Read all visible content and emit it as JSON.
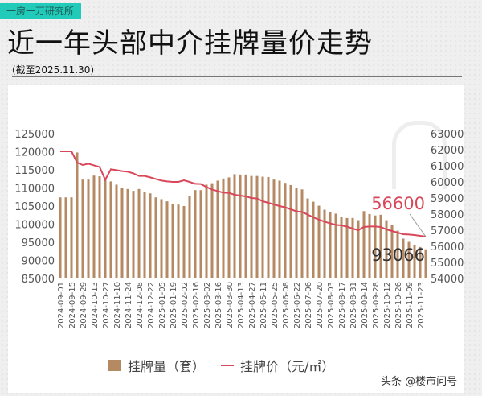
{
  "header": {
    "tag": "一房一万研究所",
    "title": "近一年头部中介挂牌量价走势",
    "subtitle": "(截至2025.11.30)"
  },
  "credit": "头条 @楼市问号",
  "colors": {
    "bars": "#b58a63",
    "line": "#d9475a",
    "tag": "#22cbb9"
  },
  "chart_data": {
    "type": "bar+line",
    "title": "近一年头部中介挂牌量价走势",
    "x_tick_labels": [
      "2024-09-01",
      "2024-09-15",
      "2024-09-29",
      "2024-10-13",
      "2024-10-27",
      "2024-11-10",
      "2024-11-24",
      "2024-12-08",
      "2024-12-22",
      "2025-01-05",
      "2025-01-19",
      "2025-02-02",
      "2025-02-16",
      "2025-03-02",
      "2025-03-16",
      "2025-03-30",
      "2025-04-13",
      "2025-04-27",
      "2025-05-11",
      "2025-05-25",
      "2025-06-08",
      "2025-06-22",
      "2025-07-06",
      "2025-07-20",
      "2025-08-03",
      "2025-08-17",
      "2025-08-31",
      "2025-09-14",
      "2025-09-28",
      "2025-10-12",
      "2025-10-26",
      "2025-11-09",
      "2025-11-23"
    ],
    "x_start": "2024-09-01",
    "x_interval": "weekly",
    "y_left": {
      "ylim": [
        85000,
        125000
      ],
      "ticks": [
        85000,
        90000,
        95000,
        100000,
        105000,
        110000,
        115000,
        120000,
        125000
      ]
    },
    "y_right": {
      "ylim": [
        54000,
        63000
      ],
      "ticks": [
        54000,
        55000,
        56000,
        57000,
        58000,
        59000,
        60000,
        61000,
        62000,
        63000
      ]
    },
    "series": [
      {
        "name": "挂牌量（套）",
        "type": "bar",
        "axis": "left",
        "values": [
          107400,
          107400,
          107400,
          119800,
          112300,
          112300,
          113400,
          113200,
          112400,
          111800,
          110900,
          110000,
          109700,
          109200,
          109700,
          109000,
          108500,
          107400,
          106900,
          106300,
          105600,
          105400,
          105000,
          107800,
          109400,
          109400,
          110900,
          111300,
          112000,
          112600,
          112900,
          113800,
          113700,
          113700,
          113300,
          113300,
          113100,
          113000,
          112300,
          112000,
          111400,
          110800,
          110000,
          109600,
          107100,
          106200,
          105100,
          104000,
          103300,
          102900,
          102000,
          101700,
          101700,
          101100,
          103600,
          102800,
          102400,
          102600,
          101100,
          99900,
          98200,
          96000,
          95100,
          94300,
          93700,
          93066
        ]
      },
      {
        "name": "挂牌价（元/㎡）",
        "type": "line",
        "axis": "right",
        "values": [
          61900,
          61900,
          61900,
          61200,
          61050,
          61130,
          61030,
          60930,
          60130,
          60780,
          60730,
          60670,
          60630,
          60530,
          60370,
          60370,
          60280,
          60180,
          60080,
          60030,
          60000,
          60000,
          60100,
          60000,
          59880,
          59870,
          59680,
          59530,
          59430,
          59330,
          59320,
          59200,
          59150,
          59100,
          59000,
          58970,
          58800,
          58700,
          58600,
          58500,
          58420,
          58300,
          58170,
          58130,
          57970,
          57800,
          57650,
          57530,
          57430,
          57330,
          57300,
          57220,
          57100,
          57000,
          57200,
          57230,
          57230,
          57200,
          57050,
          56950,
          56850,
          56750,
          56730,
          56700,
          56650,
          56600
        ]
      }
    ],
    "annotations": [
      "56600",
      "93066"
    ],
    "legend": "bottom",
    "grid": false
  }
}
